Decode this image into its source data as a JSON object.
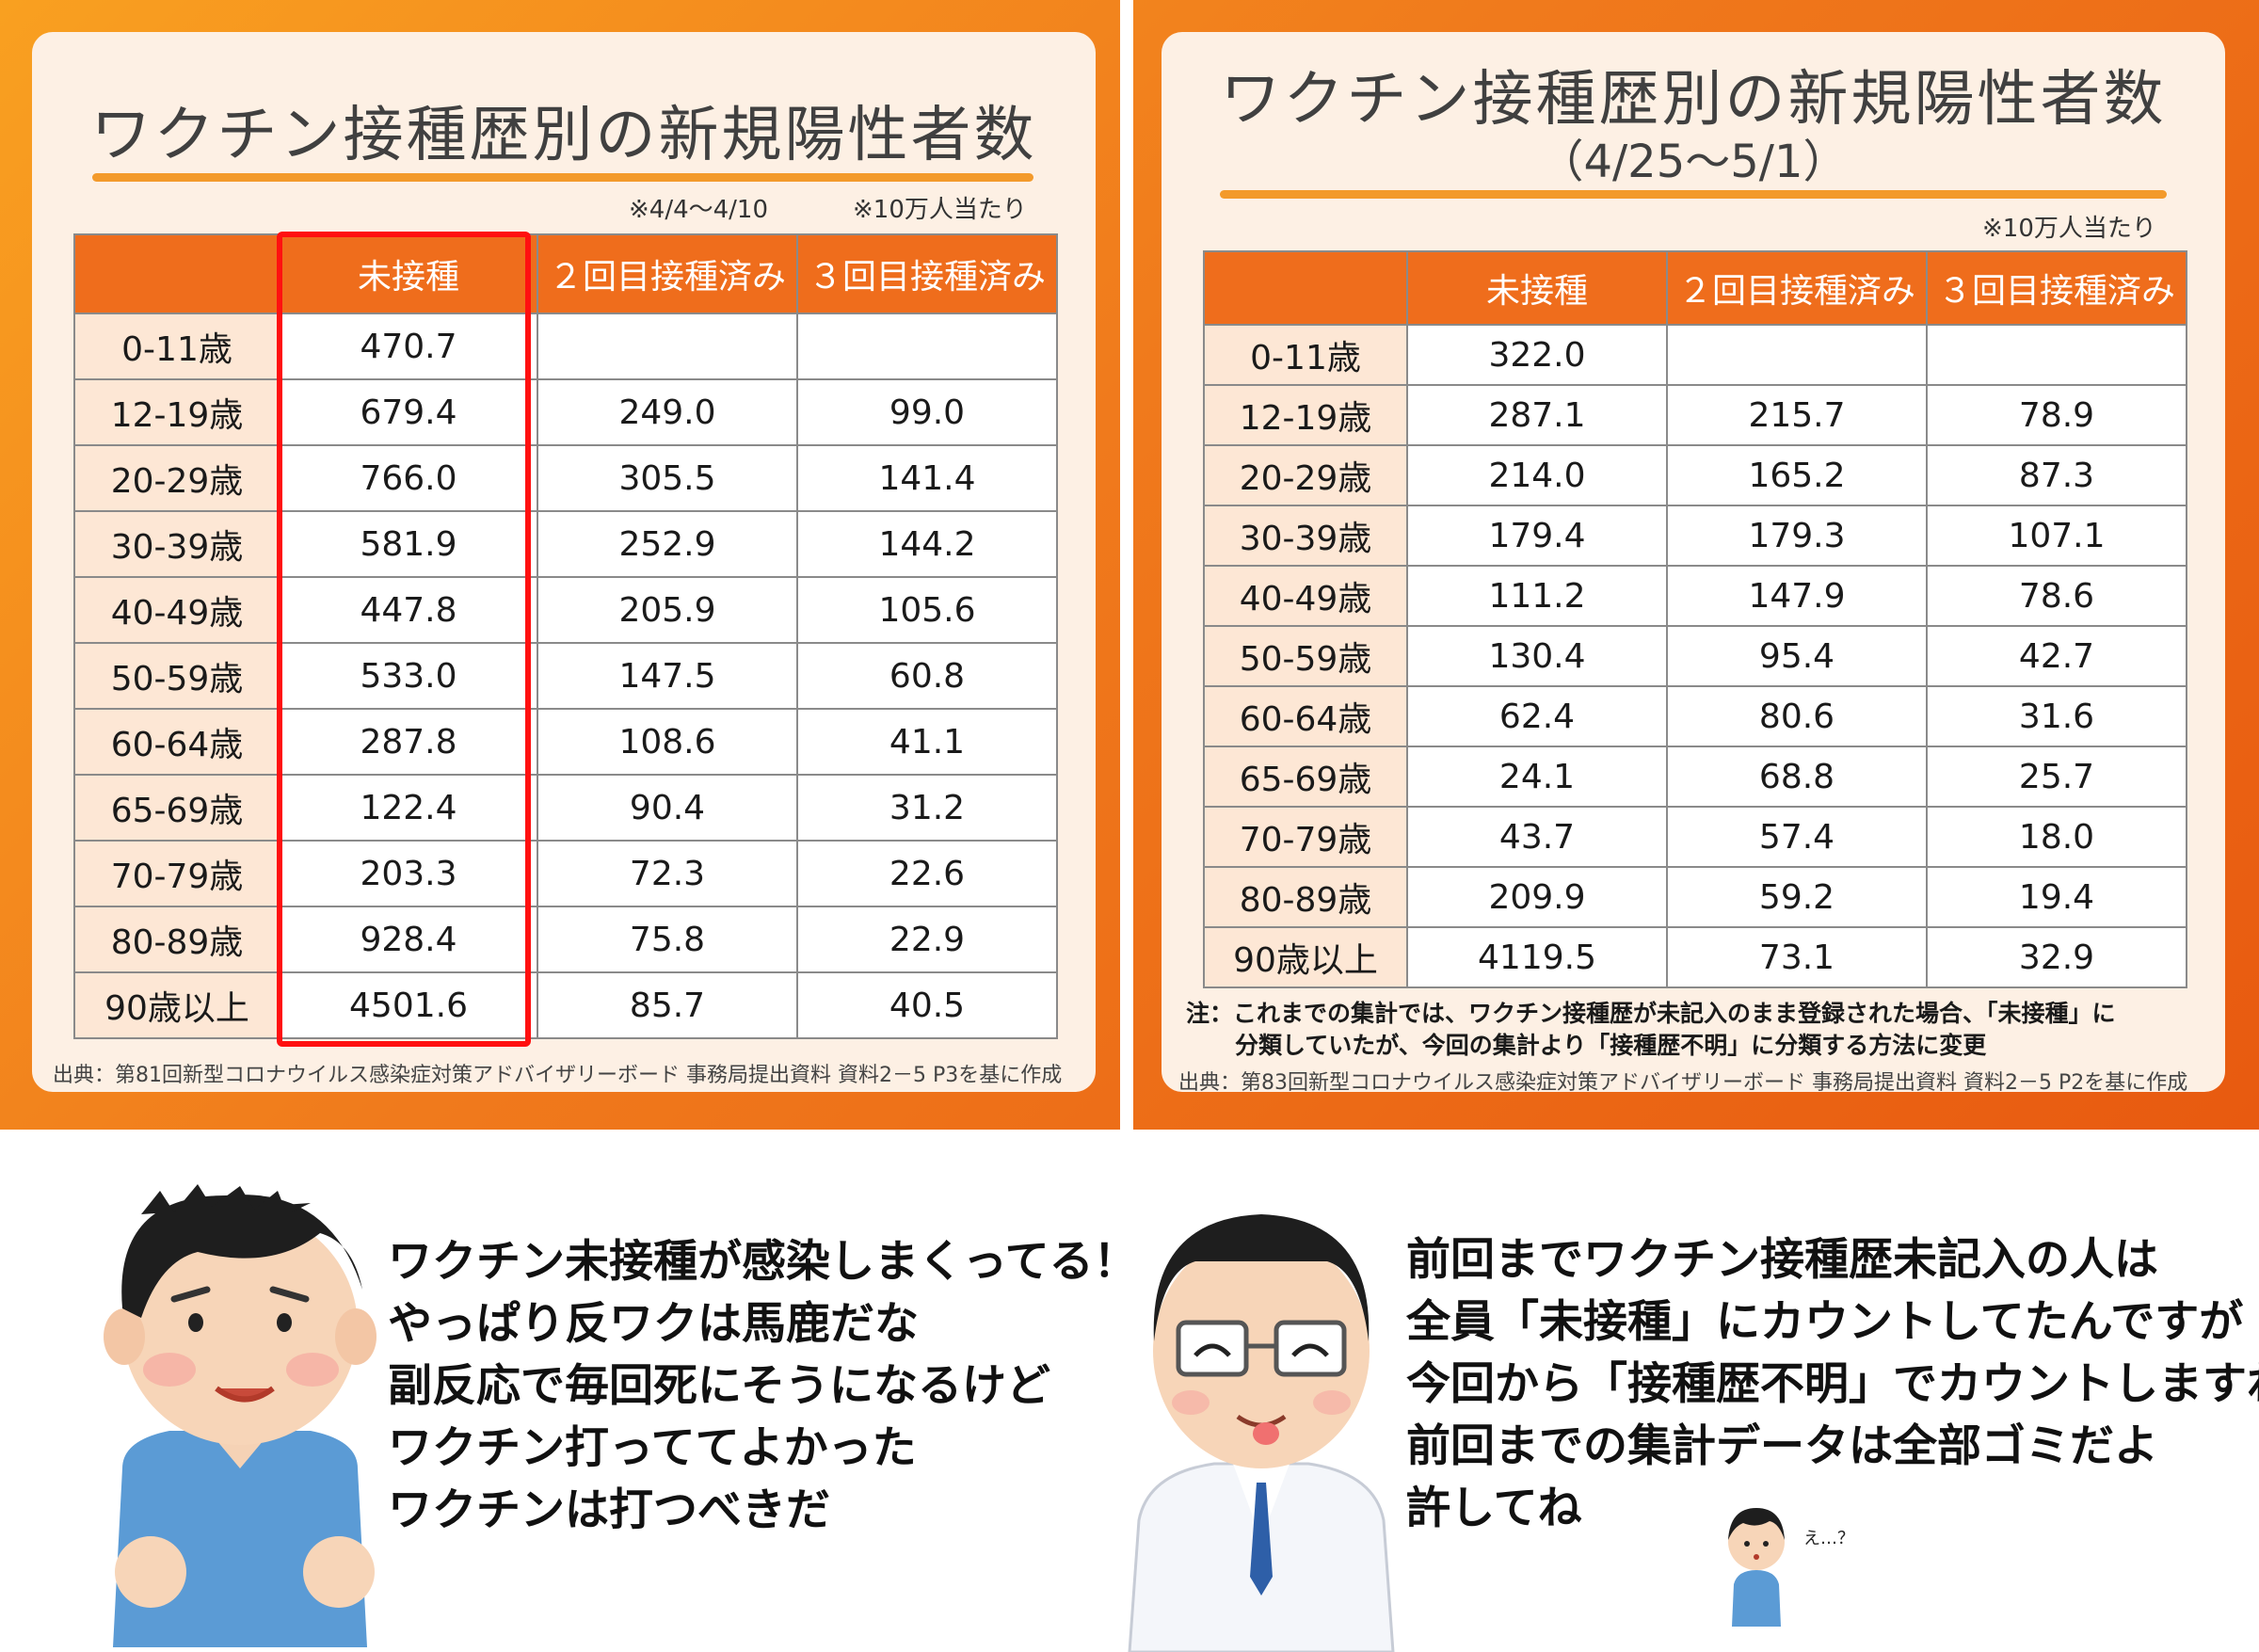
{
  "left_panel": {
    "title": "ワクチン接種歴別の新規陽性者数",
    "period_note": "※4/4～4/10",
    "unit_note": "※10万人当たり",
    "headers": [
      "",
      "未接種",
      "２回目接種済み",
      "３回目接種済み"
    ],
    "rows": [
      {
        "age": "0-11歳",
        "unvaccinated": "470.7",
        "dose2": "",
        "dose3": ""
      },
      {
        "age": "12-19歳",
        "unvaccinated": "679.4",
        "dose2": "249.0",
        "dose3": "99.0"
      },
      {
        "age": "20-29歳",
        "unvaccinated": "766.0",
        "dose2": "305.5",
        "dose3": "141.4"
      },
      {
        "age": "30-39歳",
        "unvaccinated": "581.9",
        "dose2": "252.9",
        "dose3": "144.2"
      },
      {
        "age": "40-49歳",
        "unvaccinated": "447.8",
        "dose2": "205.9",
        "dose3": "105.6"
      },
      {
        "age": "50-59歳",
        "unvaccinated": "533.0",
        "dose2": "147.5",
        "dose3": "60.8"
      },
      {
        "age": "60-64歳",
        "unvaccinated": "287.8",
        "dose2": "108.6",
        "dose3": "41.1"
      },
      {
        "age": "65-69歳",
        "unvaccinated": "122.4",
        "dose2": "90.4",
        "dose3": "31.2"
      },
      {
        "age": "70-79歳",
        "unvaccinated": "203.3",
        "dose2": "72.3",
        "dose3": "22.6"
      },
      {
        "age": "80-89歳",
        "unvaccinated": "928.4",
        "dose2": "75.8",
        "dose3": "22.9"
      },
      {
        "age": "90歳以上",
        "unvaccinated": "4501.6",
        "dose2": "85.7",
        "dose3": "40.5"
      }
    ],
    "source": "出典：第81回新型コロナウイルス感染症対策アドバイザリーボード 事務局提出資料 資料2－5 P3を基に作成"
  },
  "right_panel": {
    "title": "ワクチン接種歴別の新規陽性者数",
    "subtitle": "（4/25～5/1）",
    "unit_note": "※10万人当たり",
    "headers": [
      "",
      "未接種",
      "２回目接種済み",
      "３回目接種済み"
    ],
    "rows": [
      {
        "age": "0-11歳",
        "unvaccinated": "322.0",
        "dose2": "",
        "dose3": ""
      },
      {
        "age": "12-19歳",
        "unvaccinated": "287.1",
        "dose2": "215.7",
        "dose3": "78.9"
      },
      {
        "age": "20-29歳",
        "unvaccinated": "214.0",
        "dose2": "165.2",
        "dose3": "87.3"
      },
      {
        "age": "30-39歳",
        "unvaccinated": "179.4",
        "dose2": "179.3",
        "dose3": "107.1"
      },
      {
        "age": "40-49歳",
        "unvaccinated": "111.2",
        "dose2": "147.9",
        "dose3": "78.6"
      },
      {
        "age": "50-59歳",
        "unvaccinated": "130.4",
        "dose2": "95.4",
        "dose3": "42.7"
      },
      {
        "age": "60-64歳",
        "unvaccinated": "62.4",
        "dose2": "80.6",
        "dose3": "31.6"
      },
      {
        "age": "65-69歳",
        "unvaccinated": "24.1",
        "dose2": "68.8",
        "dose3": "25.7"
      },
      {
        "age": "70-79歳",
        "unvaccinated": "43.7",
        "dose2": "57.4",
        "dose3": "18.0"
      },
      {
        "age": "80-89歳",
        "unvaccinated": "209.9",
        "dose2": "59.2",
        "dose3": "19.4"
      },
      {
        "age": "90歳以上",
        "unvaccinated": "4119.5",
        "dose2": "73.1",
        "dose3": "32.9"
      }
    ],
    "footnote_line1": "注：これまでの集計では、ワクチン接種歴が未記入のまま登録された場合、「未接種」に",
    "footnote_line2": "分類していたが、今回の集計より「接種歴不明」に分類する方法に変更",
    "source": "出典：第83回新型コロナウイルス感染症対策アドバイザリーボード 事務局提出資料 資料2－5 P2を基に作成"
  },
  "speech_left": [
    "ワクチン未接種が感染しまくってる！",
    "やっぱり反ワクは馬鹿だな",
    "副反応で毎回死にそうになるけど",
    "ワクチン打っててよかった",
    "ワクチンは打つべきだ"
  ],
  "speech_right": [
    "前回までワクチン接種歴未記入の人は",
    "全員「未接種」にカウントしてたんですが",
    "今回から「接種歴不明」でカウントしますね",
    "前回までの集計データは全部ゴミだよ",
    "許してね"
  ],
  "small_character_speech": "え…？",
  "colors": {
    "header_orange": "#ef6d1c",
    "age_cell": "#fde7d5",
    "highlight_red": "#ff1010",
    "panel": "#fdf0e4"
  }
}
